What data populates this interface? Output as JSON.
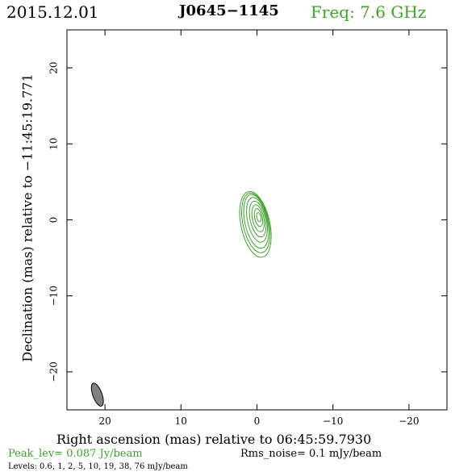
{
  "header": {
    "date": "2015.12.01",
    "source": "J0645−1145",
    "frequency": "Freq: 7.6 GHz"
  },
  "axes": {
    "xlabel": "Right ascension (mas) relative to 06:45:59.7930",
    "ylabel": "Declination (mas) relative to −11:45:19.771",
    "xlim": [
      25,
      -25
    ],
    "ylim": [
      -25,
      25
    ],
    "xticks": [
      20,
      10,
      0,
      -10,
      -20
    ],
    "yticks": [
      20,
      10,
      0,
      -10,
      -20
    ],
    "xtick_labels": [
      "20",
      "10",
      "0",
      "−10",
      "−20"
    ],
    "ytick_labels": [
      "20",
      "10",
      "0",
      "−10",
      "−20"
    ]
  },
  "footer": {
    "peak": "Peak_lev=  0.087 Jy/beam",
    "rms": "Rms_noise=   0.1 mJy/beam",
    "levels": "Levels: 0.6,    1,    2,    5,   10,   19,   38,   76 mJy/beam"
  },
  "colors": {
    "contour": "#3fa32a",
    "beam": "#808080"
  },
  "chart_data": {
    "type": "contour",
    "contour_levels_mJy": [
      0.6,
      1,
      2,
      5,
      10,
      19,
      38,
      76
    ],
    "peak_Jy_per_beam": 0.087,
    "rms_mJy_per_beam": 0.1,
    "source_center_mas": [
      0,
      0
    ],
    "beam": {
      "center_mas": [
        21,
        -23
      ],
      "major_mas": 3.2,
      "minor_mas": 1.1,
      "pa_deg": -20
    },
    "contours": [
      {
        "level": 0.6,
        "center": [
          0.2,
          -0.6
        ],
        "rx": 1.9,
        "ry": 4.4
      },
      {
        "level": 1,
        "center": [
          0.15,
          -0.4
        ],
        "rx": 1.7,
        "ry": 4.0
      },
      {
        "level": 2,
        "center": [
          0.1,
          -0.2
        ],
        "rx": 1.5,
        "ry": 3.6
      },
      {
        "level": 5,
        "center": [
          0.0,
          0.0
        ],
        "rx": 1.25,
        "ry": 3.0
      },
      {
        "level": 10,
        "center": [
          -0.1,
          0.1
        ],
        "rx": 1.0,
        "ry": 2.4
      },
      {
        "level": 19,
        "center": [
          -0.15,
          0.2
        ],
        "rx": 0.75,
        "ry": 1.8
      },
      {
        "level": 38,
        "center": [
          -0.2,
          0.3
        ],
        "rx": 0.5,
        "ry": 1.2
      },
      {
        "level": 76,
        "center": [
          -0.25,
          0.35
        ],
        "rx": 0.28,
        "ry": 0.6
      }
    ]
  }
}
